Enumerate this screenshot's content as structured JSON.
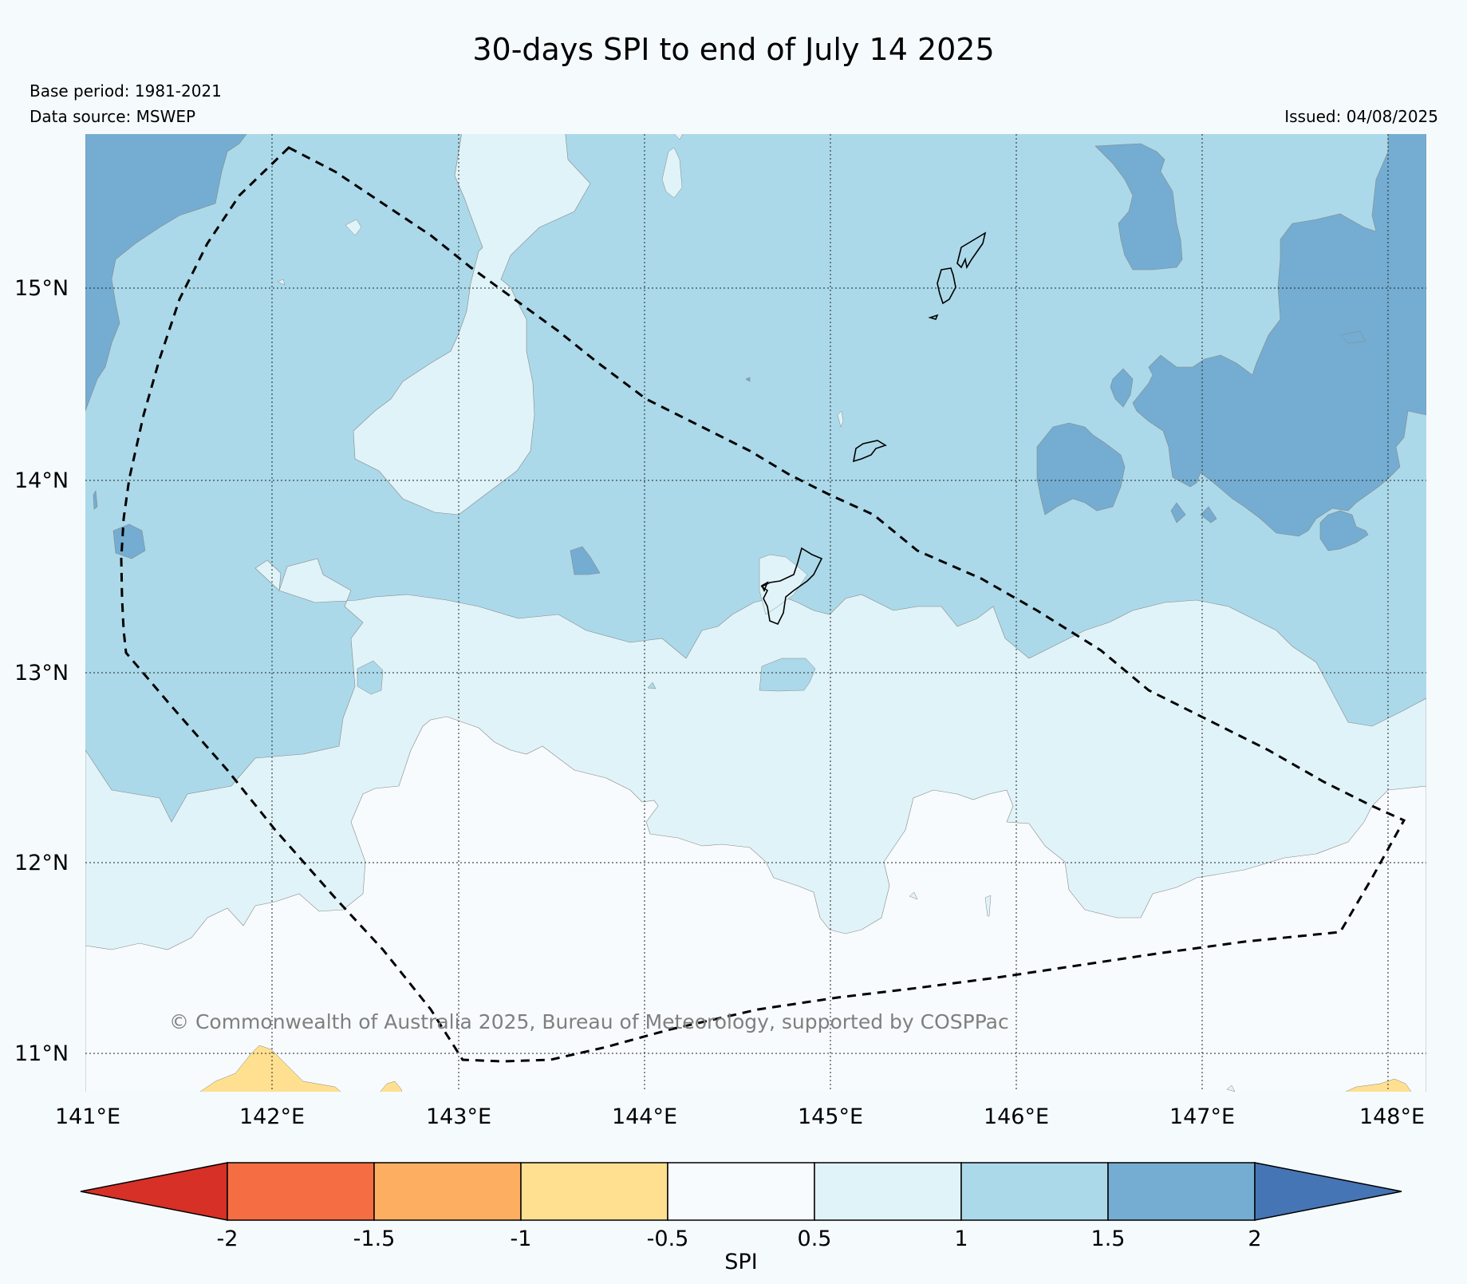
{
  "header": {
    "title": "30-days SPI to end of July 14 2025",
    "base_period": "Base period: 1981-2021",
    "data_source": "Data source: MSWEP",
    "issued": "Issued: 04/08/2025"
  },
  "map": {
    "lon_ticks": [
      "141°E",
      "142°E",
      "143°E",
      "144°E",
      "145°E",
      "146°E",
      "147°E",
      "148°E"
    ],
    "lat_ticks": [
      "15°N",
      "14°N",
      "13°N",
      "12°N",
      "11°N"
    ],
    "copyright": "© Commonwealth of Australia 2025, Bureau of Meteorology, supported by COSPPac",
    "gridlines": true,
    "dashed_region_outline": true
  },
  "colorbar": {
    "label": "SPI",
    "ticks": [
      "-2",
      "-1.5",
      "-1",
      "-0.5",
      "0.5",
      "1",
      "1.5",
      "2"
    ],
    "colors": {
      "below_-2": "#d73027",
      "-2_to_-1.5": "#f46d43",
      "-1.5_to_-1": "#fdae61",
      "-1_to_-0.5": "#fee090",
      "-0.5_to_0.5": "#f7fbfd",
      "0.5_to_1": "#e0f3f8",
      "1_to_1.5": "#abd9e9",
      "1.5_to_2": "#74add1",
      "above_2": "#4575b4"
    }
  }
}
